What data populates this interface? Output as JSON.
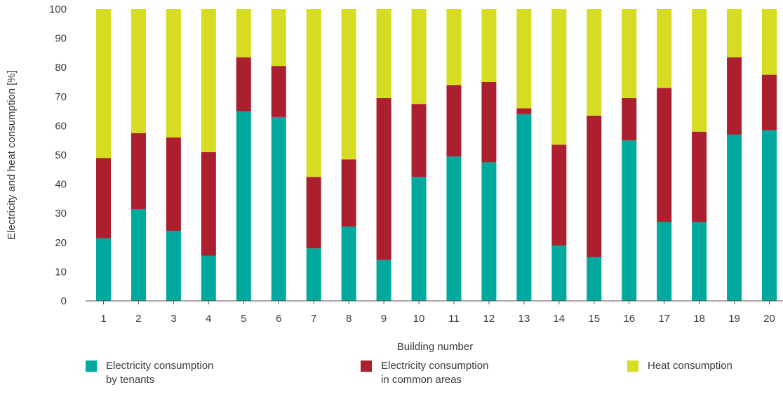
{
  "chart_data": {
    "type": "bar",
    "stacked": true,
    "categories": [
      "1",
      "2",
      "3",
      "4",
      "5",
      "6",
      "7",
      "8",
      "9",
      "10",
      "11",
      "12",
      "13",
      "14",
      "15",
      "16",
      "17",
      "18",
      "19",
      "20"
    ],
    "series": [
      {
        "name": "Electricity consumption\nby tenants",
        "color": "#00a99d",
        "values": [
          21.5,
          31.5,
          24,
          15.5,
          65,
          63,
          18,
          25.5,
          14,
          42.5,
          49.5,
          47.5,
          64,
          19,
          15,
          55,
          27,
          27,
          57,
          58.5
        ]
      },
      {
        "name": "Electricity consumption\nin common areas",
        "color": "#ab1f2e",
        "values": [
          27.5,
          26,
          32,
          35.5,
          18.5,
          17.5,
          24.5,
          23,
          55.5,
          25,
          24.5,
          27.5,
          2,
          34.5,
          48.5,
          14.5,
          46,
          31,
          26.5,
          19
        ]
      },
      {
        "name": "Heat consumption",
        "color": "#d5dc22",
        "values": [
          51,
          42.5,
          44,
          49,
          16.5,
          19.5,
          57.5,
          51.5,
          30.5,
          32.5,
          26,
          25,
          34,
          46.5,
          36.5,
          30.5,
          27,
          42,
          16.5,
          22.5
        ]
      }
    ],
    "xlabel": "Building number",
    "ylabel": "Electricity and heat consumption [%]",
    "ylim": [
      0,
      100
    ],
    "yticks": [
      0,
      10,
      20,
      30,
      40,
      50,
      60,
      70,
      80,
      90,
      100
    ],
    "grid": false,
    "legend_position": "bottom"
  }
}
